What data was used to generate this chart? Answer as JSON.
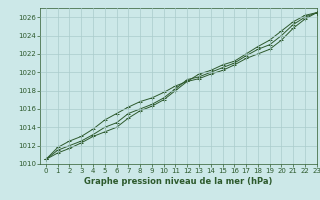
{
  "title": "Graphe pression niveau de la mer (hPa)",
  "bg_color": "#cce8e8",
  "grid_color": "#aacccc",
  "line_color": "#2d5a2d",
  "marker_color": "#2d5a2d",
  "xlim": [
    -0.5,
    23
  ],
  "ylim": [
    1010,
    1027
  ],
  "xticks": [
    0,
    1,
    2,
    3,
    4,
    5,
    6,
    7,
    8,
    9,
    10,
    11,
    12,
    13,
    14,
    15,
    16,
    17,
    18,
    19,
    20,
    21,
    22,
    23
  ],
  "yticks": [
    1010,
    1012,
    1014,
    1016,
    1018,
    1020,
    1022,
    1024,
    1026
  ],
  "series": [
    [
      1010.5,
      1011.2,
      1011.7,
      1012.3,
      1013.0,
      1013.5,
      1014.0,
      1015.0,
      1015.8,
      1016.3,
      1017.0,
      1018.0,
      1019.0,
      1019.8,
      1020.2,
      1020.8,
      1021.2,
      1022.0,
      1022.8,
      1023.5,
      1024.5,
      1025.5,
      1026.2,
      1026.5
    ],
    [
      1010.5,
      1011.5,
      1012.0,
      1012.5,
      1013.2,
      1014.0,
      1014.5,
      1015.5,
      1016.0,
      1016.5,
      1017.2,
      1018.2,
      1019.2,
      1019.5,
      1020.0,
      1020.5,
      1021.0,
      1021.8,
      1022.5,
      1023.0,
      1024.0,
      1025.2,
      1026.0,
      1026.5
    ],
    [
      1010.5,
      1011.8,
      1012.5,
      1013.0,
      1013.8,
      1014.8,
      1015.5,
      1016.2,
      1016.8,
      1017.2,
      1017.8,
      1018.5,
      1019.0,
      1019.3,
      1019.8,
      1020.2,
      1020.8,
      1021.5,
      1022.0,
      1022.5,
      1023.5,
      1024.8,
      1025.8,
      1026.5
    ]
  ],
  "title_fontsize": 6,
  "tick_fontsize": 5,
  "xlabel_fontsize": 6
}
